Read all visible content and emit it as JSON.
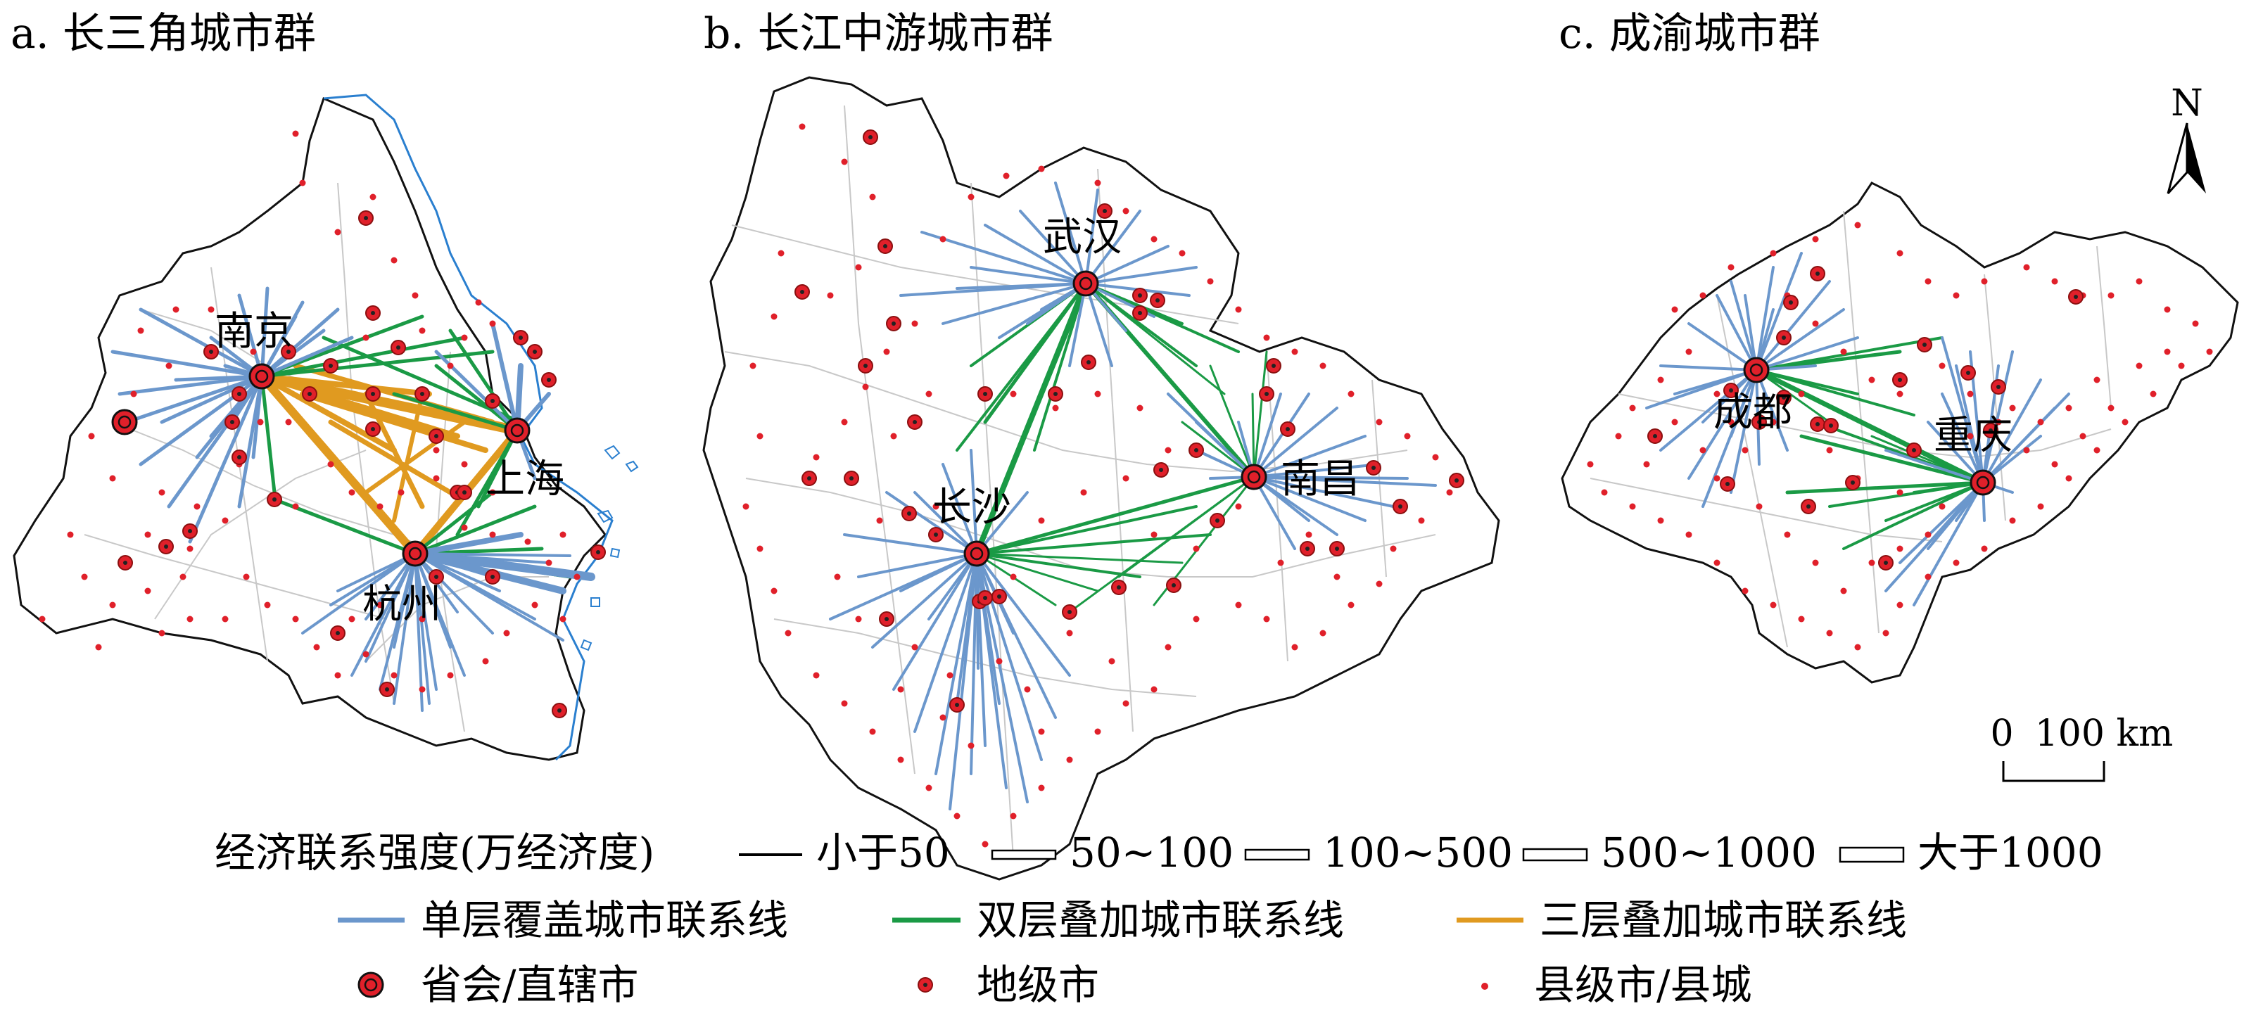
{
  "panels": [
    {
      "id": "a",
      "title": "a. 长三角城市群",
      "cities": [
        "南京",
        "上海",
        "杭州"
      ]
    },
    {
      "id": "b",
      "title": "b. 长江中游城市群",
      "cities": [
        "武汉",
        "长沙",
        "南昌"
      ]
    },
    {
      "id": "c",
      "title": "c. 成渝城市群",
      "cities": [
        "成都",
        "重庆"
      ]
    }
  ],
  "north_label": "N",
  "scale": {
    "start": "0",
    "end": "100 km"
  },
  "legend": {
    "strength_title": "经济联系强度(万经济度)",
    "strength_classes": [
      "小于50",
      "50~100",
      "100~500",
      "500~1000",
      "大于1000"
    ],
    "line_types": [
      {
        "label": "单层覆盖城市联系线",
        "color": "#6b97cc"
      },
      {
        "label": "双层叠加城市联系线",
        "color": "#1a9a45"
      },
      {
        "label": "三层叠加城市联系线",
        "color": "#e09a20"
      }
    ],
    "point_types": [
      "省会/直辖市",
      "地级市",
      "县级市/县城"
    ]
  },
  "colors": {
    "point": "#e0202a",
    "boundary": "#c8c8c8",
    "outline": "#111111",
    "coast": "#2a7fcf"
  }
}
